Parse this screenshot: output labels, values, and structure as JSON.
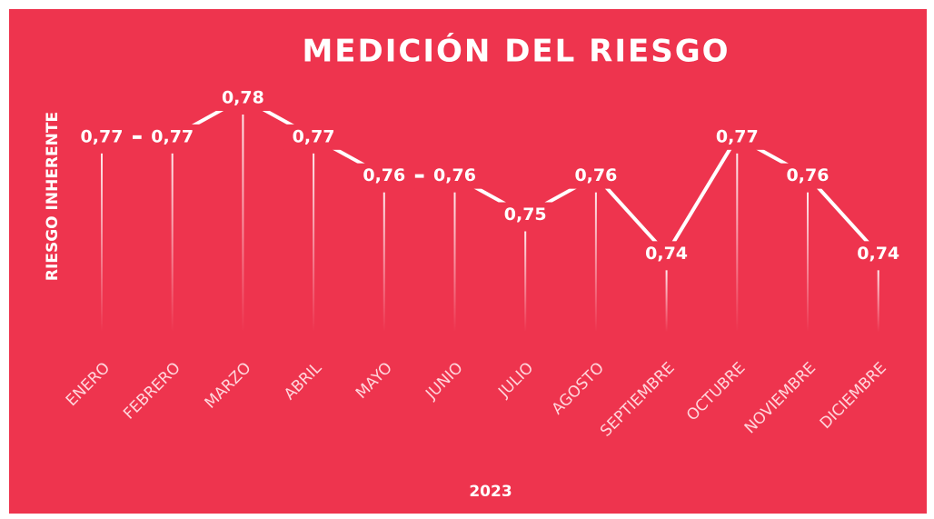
{
  "chart_data": {
    "type": "line",
    "title": "MEDICIÓN DEL RIESGO",
    "y_label": "RIESGO INHERENTE",
    "x_label": "2023",
    "categories": [
      "ENERO",
      "FEBRERO",
      "MARZO",
      "ABRIL",
      "MAYO",
      "JUNIO",
      "JULIO",
      "AGOSTO",
      "SEPTIEMBRE",
      "OCTUBRE",
      "NOVIEMBRE",
      "DICIEMBRE"
    ],
    "values": [
      0.77,
      0.77,
      0.78,
      0.77,
      0.76,
      0.76,
      0.75,
      0.76,
      0.74,
      0.77,
      0.76,
      0.74
    ],
    "value_labels": [
      "0,77",
      "0,77",
      "0,78",
      "0,77",
      "0,76",
      "0,76",
      "0,75",
      "0,76",
      "0,74",
      "0,77",
      "0,76",
      "0,74"
    ],
    "color": "#ffffff",
    "background": "#ee344e",
    "ylim": [
      0.72,
      0.78
    ]
  }
}
